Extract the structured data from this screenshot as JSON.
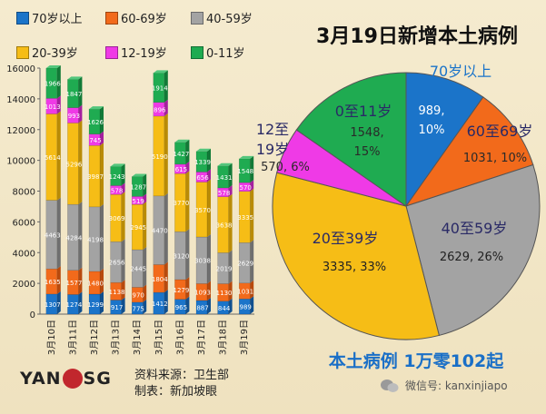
{
  "legend": [
    {
      "label": "70岁以上",
      "color": "#1b74c9"
    },
    {
      "label": "60-69岁",
      "color": "#f26a1b"
    },
    {
      "label": "40-59岁",
      "color": "#a3a3a3"
    },
    {
      "label": "20-39岁",
      "color": "#f6bd16"
    },
    {
      "label": "12-19岁",
      "color": "#ef3ae6"
    },
    {
      "label": "0-11岁",
      "color": "#1fab51"
    }
  ],
  "pie_title": "3月19日新增本土病例",
  "summary": "本土病例 1万零102起",
  "source_line": "资料来源：卫生部",
  "made_by_line": "制表：新加坡眼",
  "logo": {
    "left": "YAN",
    "right": "SG"
  },
  "wechat": "微信号: kanxinjiapo",
  "chart_data": [
    {
      "type": "bar",
      "stacked": true,
      "categories": [
        "3月10日",
        "3月11日",
        "3月12日",
        "3月13日",
        "3月14日",
        "3月15日",
        "3月16日",
        "3月17日",
        "3月18日",
        "3月19日"
      ],
      "ylim": [
        0,
        16000
      ],
      "yticks": [
        0,
        2000,
        4000,
        6000,
        8000,
        10000,
        12000,
        14000,
        16000
      ],
      "grid": false,
      "legend_position": "top",
      "series": [
        {
          "name": "70岁以上",
          "color": "#1b74c9",
          "values": [
            1307,
            1274,
            1299,
            917,
            775,
            1412,
            965,
            887,
            844,
            989
          ],
          "labels": [
            "1307",
            "1274",
            "1299",
            "917",
            "775",
            "1412",
            "965",
            "887",
            "844",
            "989"
          ]
        },
        {
          "name": "60-69岁",
          "color": "#f26a1b",
          "values": [
            1635,
            1577,
            1480,
            1138,
            970,
            1804,
            1279,
            1093,
            1130,
            1031
          ],
          "labels": [
            "1635",
            "1577",
            "1480",
            "1138",
            "970",
            "1804",
            "1279",
            "1093",
            "1130",
            "1031"
          ]
        },
        {
          "name": "40-59岁",
          "color": "#a3a3a3",
          "values": [
            4463,
            4284,
            4198,
            2656,
            2445,
            4470,
            3120,
            3038,
            2019,
            2629
          ],
          "labels": [
            "4463",
            "4284",
            "4198",
            "2656",
            "2445",
            "4470",
            "3120",
            "3038",
            "2019",
            "2629"
          ]
        },
        {
          "name": "20-39岁",
          "color": "#f6bd16",
          "values": [
            5614,
            5296,
            3987,
            3069,
            2945,
            5190,
            3770,
            3570,
            3638,
            3335
          ],
          "labels": [
            "5614",
            "5296",
            "3987",
            "3069",
            "2945",
            "5190",
            "3770",
            "3570",
            "3638",
            "3335"
          ]
        },
        {
          "name": "12-19岁",
          "color": "#ef3ae6",
          "values": [
            1013,
            993,
            745,
            578,
            519,
            896,
            615,
            656,
            578,
            570
          ],
          "labels": [
            "1013",
            "993",
            "745",
            "578",
            "519",
            "896",
            "615",
            "656",
            "578",
            "570"
          ]
        },
        {
          "name": "0-11岁",
          "color": "#1fab51",
          "values": [
            1966,
            1847,
            1626,
            1243,
            1287,
            1914,
            1427,
            1339,
            1431,
            1548
          ],
          "labels": [
            "1966",
            "1847",
            "1626",
            "1243",
            "1287",
            "1914",
            "1427",
            "1339",
            "1431",
            "1548"
          ]
        }
      ]
    },
    {
      "type": "pie",
      "title": "3月19日新增本土病例",
      "slices": [
        {
          "name": "70岁以上",
          "value": 989,
          "pct": "10%",
          "color": "#1b74c9",
          "name_label": "70岁以上",
          "value_label": "989,\n10%"
        },
        {
          "name": "60至69岁",
          "value": 1031,
          "pct": "10%",
          "color": "#f26a1b",
          "name_label": "60至69岁",
          "value_label": "1031, 10%"
        },
        {
          "name": "40至59岁",
          "value": 2629,
          "pct": "26%",
          "color": "#a3a3a3",
          "name_label": "40至59岁",
          "value_label": "2629, 26%"
        },
        {
          "name": "20至39岁",
          "value": 3335,
          "pct": "33%",
          "color": "#f6bd16",
          "name_label": "20至39岁",
          "value_label": "3335, 33%"
        },
        {
          "name": "12至19岁",
          "value": 570,
          "pct": "6%",
          "color": "#ef3ae6",
          "name_label": "12至\n19岁",
          "value_label": "570, 6%"
        },
        {
          "name": "0至11岁",
          "value": 1548,
          "pct": "15%",
          "color": "#1fab51",
          "name_label": "0至11岁",
          "value_label": "1548,\n15%"
        }
      ]
    }
  ]
}
